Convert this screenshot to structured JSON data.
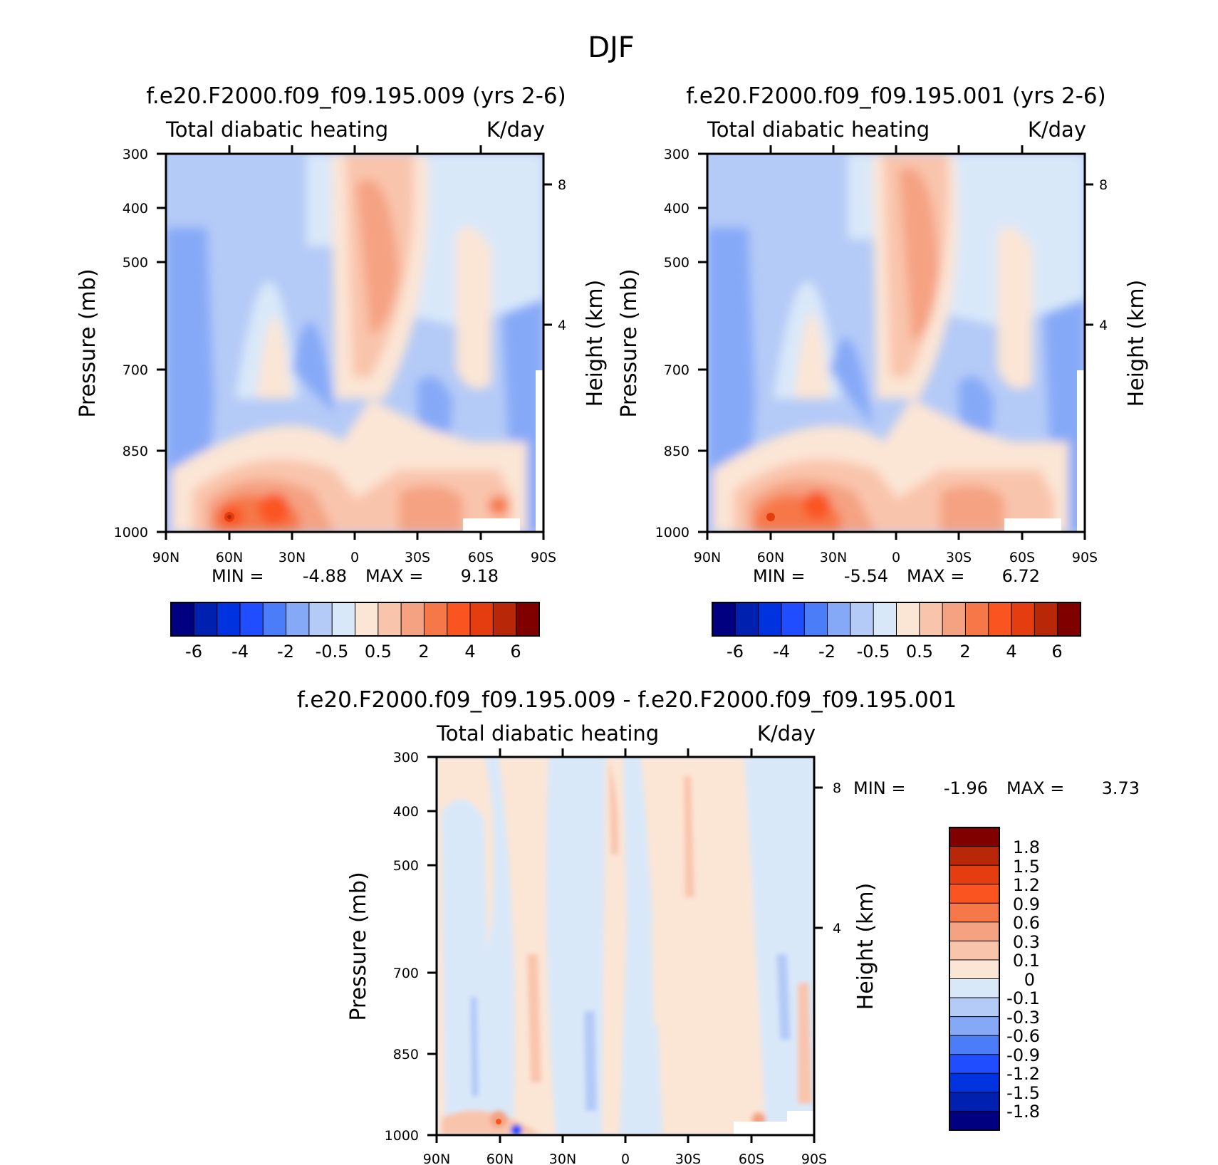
{
  "figure_title": "DJF",
  "colors": {
    "label_bar_12": [
      "#000080",
      "#0020b0",
      "#0033e0",
      "#1f4dff",
      "#4c7df8",
      "#86a9f7",
      "#b4caf7",
      "#d9e8f9",
      "#fbe5d5",
      "#f9c4ac",
      "#f5a283",
      "#f67848",
      "#fa5420",
      "#e43d0f",
      "#b82708",
      "#800000"
    ],
    "diff_bar": [
      "#000080",
      "#0020b0",
      "#0033e0",
      "#1f4dff",
      "#4c7df8",
      "#86a9f7",
      "#b4caf7",
      "#d9e8f9",
      "#fbe5d5",
      "#f9c4ac",
      "#f5a283",
      "#f67848",
      "#fa5420",
      "#e43d0f",
      "#b82708",
      "#800000"
    ]
  },
  "chart_data": [
    {
      "type": "heatmap",
      "title": "f.e20.F2000.f09_f09.195.009 (yrs 2-6)",
      "subtitle_left": "Total diabatic heating",
      "subtitle_right": "K/day",
      "xlabel": "",
      "ylabel": "Pressure (mb)",
      "ylabel_right": "Height (km)",
      "x_ticks": [
        "90N",
        "60N",
        "30N",
        "0",
        "30S",
        "60S",
        "90S"
      ],
      "y_ticks": [
        "300",
        "400",
        "500",
        "700",
        "850",
        "1000"
      ],
      "y_right_ticks": [
        "8",
        "4"
      ],
      "ylim": [
        1000,
        300
      ],
      "min_label": "MIN =",
      "min_value": "-4.88",
      "max_label": "MAX =",
      "max_value": "9.18",
      "min": -4.88,
      "max": 9.18,
      "colorbar_labels": [
        "-6",
        "-4",
        "-2",
        "-0.5",
        "0.5",
        "2",
        "4",
        "6"
      ],
      "colorbar_levels": [
        -6,
        -5,
        -4,
        -3,
        -2,
        -1,
        -0.5,
        0,
        0.5,
        1,
        2,
        3,
        4,
        5,
        6
      ]
    },
    {
      "type": "heatmap",
      "title": "f.e20.F2000.f09_f09.195.001 (yrs 2-6)",
      "subtitle_left": "Total diabatic heating",
      "subtitle_right": "K/day",
      "xlabel": "",
      "ylabel": "Pressure (mb)",
      "ylabel_right": "Height (km)",
      "x_ticks": [
        "90N",
        "60N",
        "30N",
        "0",
        "30S",
        "60S",
        "90S"
      ],
      "y_ticks": [
        "300",
        "400",
        "500",
        "700",
        "850",
        "1000"
      ],
      "y_right_ticks": [
        "8",
        "4"
      ],
      "ylim": [
        1000,
        300
      ],
      "min_label": "MIN =",
      "min_value": "-5.54",
      "max_label": "MAX =",
      "max_value": "6.72",
      "min": -5.54,
      "max": 6.72,
      "colorbar_labels": [
        "-6",
        "-4",
        "-2",
        "-0.5",
        "0.5",
        "2",
        "4",
        "6"
      ],
      "colorbar_levels": [
        -6,
        -5,
        -4,
        -3,
        -2,
        -1,
        -0.5,
        0,
        0.5,
        1,
        2,
        3,
        4,
        5,
        6
      ]
    },
    {
      "type": "heatmap",
      "title": "f.e20.F2000.f09_f09.195.009 - f.e20.F2000.f09_f09.195.001",
      "subtitle_left": "Total diabatic heating",
      "subtitle_right": "K/day",
      "xlabel": "",
      "ylabel": "Pressure (mb)",
      "ylabel_right": "Height (km)",
      "x_ticks": [
        "90N",
        "60N",
        "30N",
        "0",
        "30S",
        "60S",
        "90S"
      ],
      "y_ticks": [
        "300",
        "400",
        "500",
        "700",
        "850",
        "1000"
      ],
      "y_right_ticks": [
        "8",
        "4"
      ],
      "ylim": [
        1000,
        300
      ],
      "min_label": "MIN =",
      "min_value": "-1.96",
      "max_label": "MAX =",
      "max_value": "3.73",
      "min": -1.96,
      "max": 3.73,
      "colorbar_labels": [
        "1.8",
        "1.5",
        "1.2",
        "0.9",
        "0.6",
        "0.3",
        "0.1",
        "0",
        "-0.1",
        "-0.3",
        "-0.6",
        "-0.9",
        "-1.2",
        "-1.5",
        "-1.8"
      ]
    }
  ]
}
